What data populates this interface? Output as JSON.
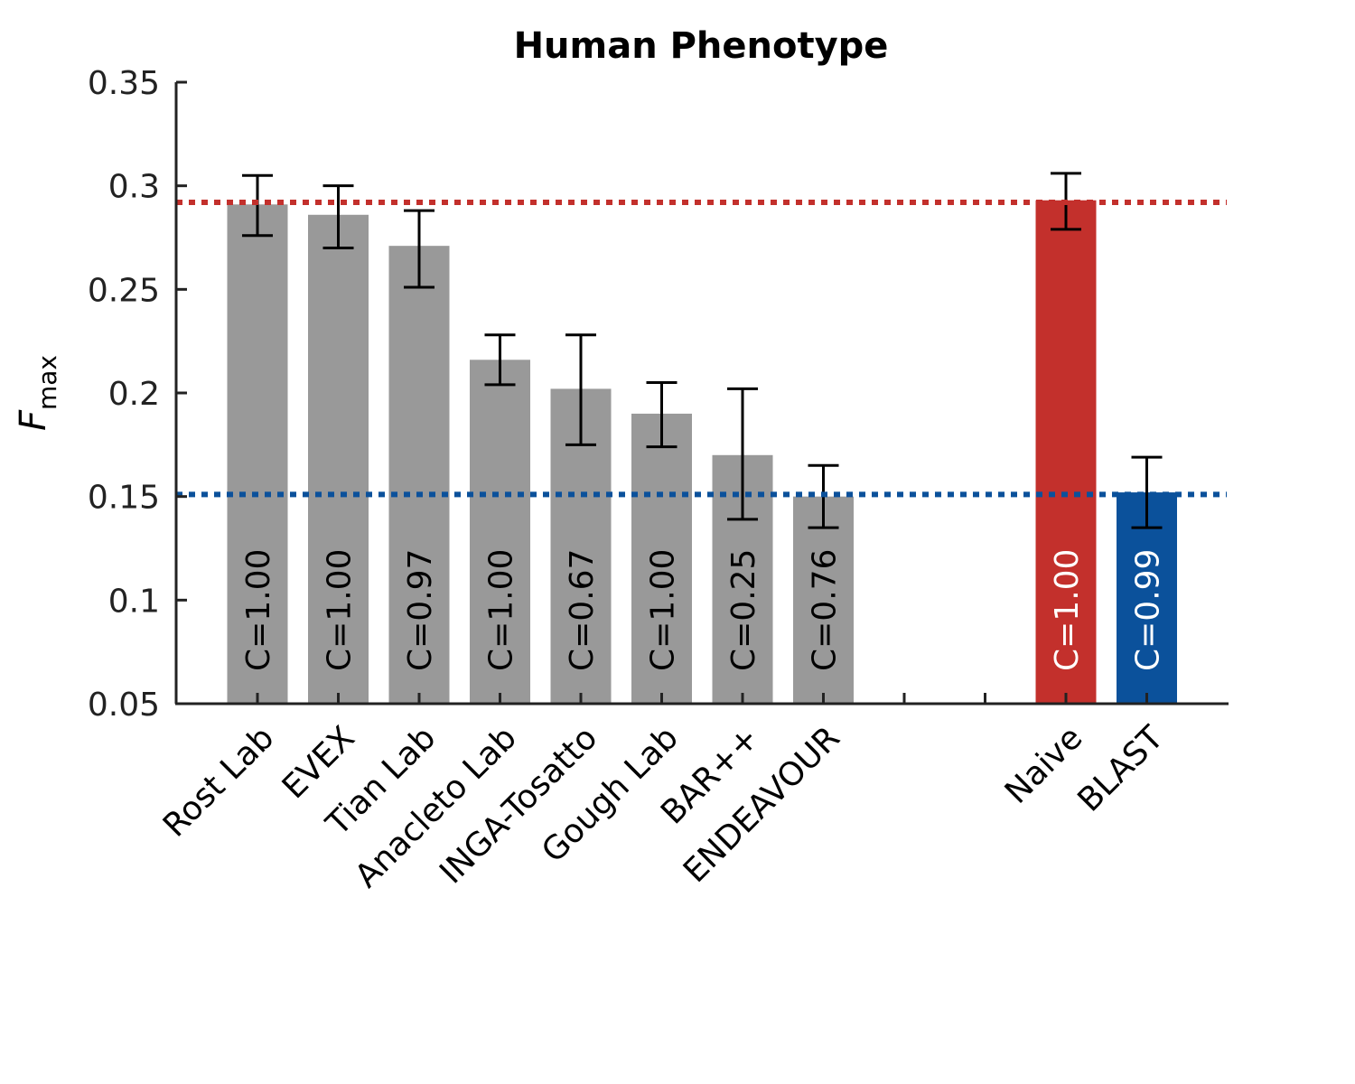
{
  "chart_data": {
    "type": "bar",
    "title": "Human Phenotype",
    "ylabel": "F",
    "ylabel_subscript": "max",
    "ylim": [
      0.05,
      0.35
    ],
    "yticks": [
      "0.05",
      "0.1",
      "0.15",
      "0.2",
      "0.25",
      "0.3",
      "0.35"
    ],
    "grid": false,
    "categories": [
      "Rost Lab",
      "EVEX",
      "Tian Lab",
      "Anacleto Lab",
      "INGA-Tosatto",
      "Gough Lab",
      "BAR++",
      "ENDEAVOUR",
      "",
      "",
      "Naive",
      "BLAST"
    ],
    "values": [
      0.291,
      0.286,
      0.271,
      0.216,
      0.202,
      0.19,
      0.17,
      0.15,
      null,
      null,
      0.293,
      0.152
    ],
    "error_low": [
      0.276,
      0.27,
      0.251,
      0.204,
      0.175,
      0.174,
      0.139,
      0.135,
      null,
      null,
      0.279,
      0.135
    ],
    "error_high": [
      0.305,
      0.3,
      0.288,
      0.228,
      0.228,
      0.205,
      0.202,
      0.165,
      null,
      null,
      0.306,
      0.169
    ],
    "coverage_labels": [
      "C=1.00",
      "C=1.00",
      "C=0.97",
      "C=1.00",
      "C=0.67",
      "C=1.00",
      "C=0.25",
      "C=0.76",
      "",
      "",
      "C=1.00",
      "C=0.99"
    ],
    "bar_colors": [
      "#999999",
      "#999999",
      "#999999",
      "#999999",
      "#999999",
      "#999999",
      "#999999",
      "#999999",
      "",
      "",
      "#c3302c",
      "#0b519b"
    ],
    "coverage_label_colors": [
      "#000000",
      "#000000",
      "#000000",
      "#000000",
      "#000000",
      "#000000",
      "#000000",
      "#000000",
      "",
      "",
      "#ffffff",
      "#ffffff"
    ],
    "reference_lines": [
      {
        "value": 0.292,
        "color": "#c3302c",
        "style": "dotted"
      },
      {
        "value": 0.151,
        "color": "#0b519b",
        "style": "dotted"
      }
    ]
  }
}
